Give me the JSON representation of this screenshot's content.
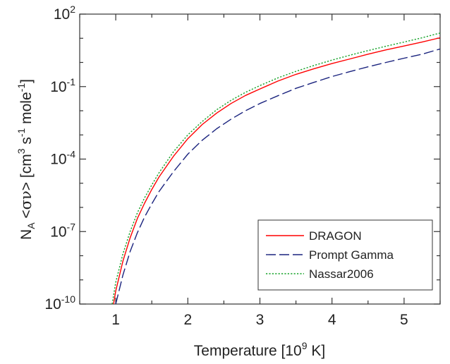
{
  "chart_data": {
    "type": "line",
    "xlabel": {
      "main": "Temperature [10",
      "sup": "9",
      "tail": " K]"
    },
    "ylabel": {
      "parts": [
        {
          "t": "N",
          "s": "base"
        },
        {
          "t": "A",
          "s": "sub"
        },
        {
          "t": " <",
          "s": "base"
        },
        {
          "t": "σν",
          "s": "symbol"
        },
        {
          "t": "> [cm",
          "s": "base"
        },
        {
          "t": "3",
          "s": "sup"
        },
        {
          "t": " s",
          "s": "base"
        },
        {
          "t": "-1",
          "s": "sup"
        },
        {
          "t": " mole",
          "s": "base"
        },
        {
          "t": "-1",
          "s": "sup"
        },
        {
          "t": "]",
          "s": "base"
        }
      ]
    },
    "xlim": [
      0.5,
      5.5
    ],
    "ylim": [
      1e-10,
      100
    ],
    "yscale": "log",
    "x_ticks": [
      {
        "value": 1,
        "label": "1"
      },
      {
        "value": 2,
        "label": "2"
      },
      {
        "value": 3,
        "label": "3"
      },
      {
        "value": 4,
        "label": "4"
      },
      {
        "value": 5,
        "label": "5"
      }
    ],
    "y_ticks": [
      {
        "exp": -10,
        "base": "10",
        "sup": "-10"
      },
      {
        "exp": -7,
        "base": "10",
        "sup": "-7"
      },
      {
        "exp": -4,
        "base": "10",
        "sup": "-4"
      },
      {
        "exp": -1,
        "base": "10",
        "sup": "-1"
      },
      {
        "exp": 2,
        "base": "10",
        "sup": "2"
      }
    ],
    "legend_position": "bottom-right",
    "series": [
      {
        "name": "DRAGON",
        "color": "#ff0000",
        "dash": "solid",
        "x": [
          0.97,
          1.0,
          1.1,
          1.2,
          1.3,
          1.4,
          1.5,
          1.6,
          1.8,
          2.0,
          2.2,
          2.4,
          2.6,
          2.8,
          3.0,
          3.25,
          3.5,
          3.75,
          4.0,
          4.25,
          4.5,
          4.75,
          5.0,
          5.25,
          5.5
        ],
        "y": [
          1e-10,
          3.5e-10,
          6e-09,
          5.5e-08,
          3.5e-07,
          1.5e-06,
          5.5e-06,
          1.8e-05,
          0.00013,
          0.0007,
          0.0027,
          0.008,
          0.02,
          0.043,
          0.08,
          0.17,
          0.32,
          0.55,
          0.9,
          1.4,
          2.2,
          3.3,
          4.8,
          7.0,
          10.5
        ]
      },
      {
        "name": "Prompt Gamma",
        "color": "#1a237e",
        "dash": "longdash",
        "x": [
          1.0,
          1.1,
          1.2,
          1.3,
          1.4,
          1.5,
          1.6,
          1.8,
          2.0,
          2.2,
          2.4,
          2.6,
          2.8,
          3.0,
          3.25,
          3.5,
          3.75,
          4.0,
          4.25,
          4.5,
          4.75,
          5.0,
          5.25,
          5.5
        ],
        "y": [
          1e-10,
          1.6e-09,
          1.5e-08,
          9e-08,
          4e-07,
          1.4e-06,
          4.5e-06,
          3e-05,
          0.00016,
          0.0006,
          0.0018,
          0.0045,
          0.01,
          0.02,
          0.042,
          0.085,
          0.15,
          0.26,
          0.42,
          0.66,
          1.0,
          1.5,
          2.2,
          3.6
        ]
      },
      {
        "name": "Nassar2006",
        "color": "#17a32a",
        "dash": "dotted",
        "x": [
          0.95,
          1.0,
          1.1,
          1.2,
          1.3,
          1.4,
          1.5,
          1.6,
          1.8,
          2.0,
          2.2,
          2.4,
          2.6,
          2.8,
          3.0,
          3.25,
          3.5,
          3.75,
          4.0,
          4.25,
          4.5,
          4.75,
          5.0,
          5.25,
          5.5
        ],
        "y": [
          1e-10,
          8e-10,
          1.2e-08,
          1e-07,
          6e-07,
          2.5e-06,
          8.5e-06,
          2.7e-05,
          0.0002,
          0.001,
          0.0036,
          0.011,
          0.027,
          0.058,
          0.11,
          0.23,
          0.43,
          0.75,
          1.25,
          2.0,
          3.1,
          4.7,
          7.0,
          10.5,
          16.5
        ]
      }
    ]
  }
}
